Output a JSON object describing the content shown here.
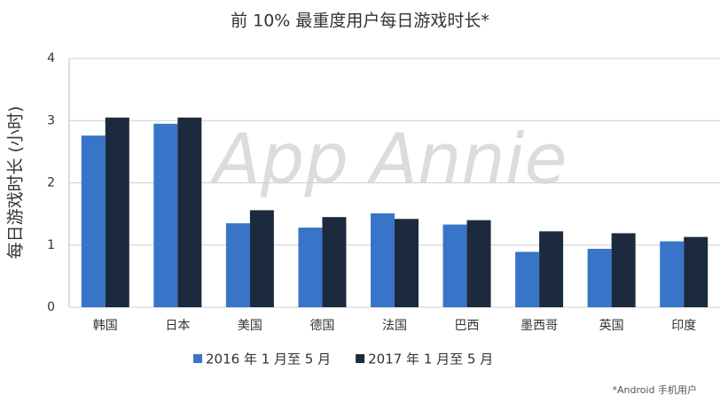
{
  "chart_data": {
    "type": "bar",
    "title": "前 10% 最重度用户每日游戏时长*",
    "y_label": "每日游戏时长 (小时)",
    "watermark": "App Annie",
    "footnote": "*Android 手机用户",
    "categories": [
      "韩国",
      "日本",
      "美国",
      "德国",
      "法国",
      "巴西",
      "墨西哥",
      "英国",
      "印度"
    ],
    "series": [
      {
        "name": "2016 年 1 月至 5 月",
        "color": "#3875c8",
        "values": [
          2.76,
          2.95,
          1.35,
          1.28,
          1.51,
          1.33,
          0.89,
          0.94,
          1.06
        ]
      },
      {
        "name": "2017 年 1 月至 5 月",
        "color": "#1c2a3e",
        "values": [
          3.05,
          3.05,
          1.56,
          1.45,
          1.42,
          1.4,
          1.22,
          1.19,
          1.13
        ]
      }
    ],
    "ylim": [
      0,
      4
    ],
    "yticks": [
      0,
      1,
      2,
      3,
      4
    ],
    "grid": true
  }
}
